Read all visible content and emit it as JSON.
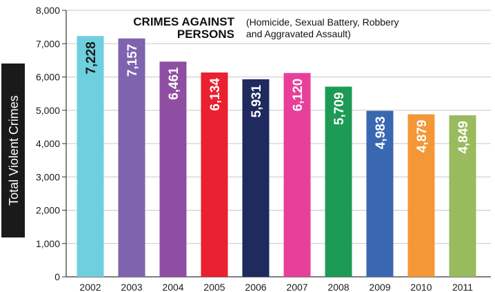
{
  "chart_data": {
    "type": "bar",
    "title": "CRIMES AGAINST PERSONS",
    "title_lines": [
      "CRIMES AGAINST",
      "PERSONS"
    ],
    "subtitle": "(Homicide, Sexual Battery, Robbery and Aggravated Assault)",
    "subtitle_lines": [
      "(Homicide, Sexual Battery, Robbery",
      "and Aggravated Assault)"
    ],
    "xlabel": "",
    "ylabel": "Total Violent Crimes",
    "ylim": [
      0,
      8000
    ],
    "yticks": [
      0,
      1000,
      2000,
      3000,
      4000,
      5000,
      6000,
      7000,
      8000
    ],
    "ytick_labels": [
      "0",
      "1,000",
      "2,000",
      "3,000",
      "4,000",
      "5,000",
      "6,000",
      "7,000",
      "8,000"
    ],
    "grid": true,
    "categories": [
      "2002",
      "2003",
      "2004",
      "2005",
      "2006",
      "2007",
      "2008",
      "2009",
      "2010",
      "2011"
    ],
    "values": [
      7228,
      7157,
      6461,
      6134,
      5931,
      6120,
      5709,
      4983,
      4879,
      4849
    ],
    "value_labels": [
      "7,228",
      "7,157",
      "6,461",
      "6,134",
      "5,931",
      "6,120",
      "5,709",
      "4,983",
      "4,879",
      "4,849"
    ],
    "colors": [
      "#6ecfdf",
      "#7e63ae",
      "#8e4fa2",
      "#ea2130",
      "#1f2a5e",
      "#e8409a",
      "#1d9a55",
      "#3a67b1",
      "#f49737",
      "#9aba5e"
    ],
    "label_colors": [
      "#1a1a1a",
      "#ffffff",
      "#ffffff",
      "#ffffff",
      "#ffffff",
      "#ffffff",
      "#ffffff",
      "#ffffff",
      "#ffffff",
      "#ffffff"
    ]
  }
}
